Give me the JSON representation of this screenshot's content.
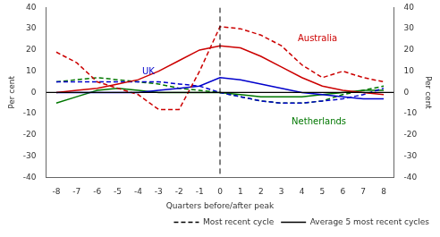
{
  "chart_data": {
    "type": "line",
    "x": [
      -8,
      -7,
      -6,
      -5,
      -4,
      -3,
      -2,
      -1,
      0,
      1,
      2,
      3,
      4,
      5,
      6,
      7,
      8
    ],
    "series": [
      {
        "name": "Australia",
        "color": "#cc0000",
        "line_style": "solid",
        "values": [
          0,
          1,
          2,
          4,
          6,
          10,
          15,
          20,
          22,
          21,
          17,
          12,
          7,
          3,
          1,
          0,
          -1
        ]
      },
      {
        "name": "Australia",
        "color": "#cc0000",
        "line_style": "dashed",
        "values": [
          19,
          14,
          5,
          2,
          -1,
          -8,
          -8,
          10,
          31,
          30,
          27,
          22,
          13,
          7,
          10,
          7,
          5
        ]
      },
      {
        "name": "UK",
        "color": "#0000cc",
        "line_style": "solid",
        "values": [
          0,
          0,
          0,
          0,
          0,
          1,
          2,
          3,
          7,
          6,
          4,
          2,
          0,
          -1,
          -2,
          -3,
          -3
        ]
      },
      {
        "name": "UK",
        "color": "#0000cc",
        "line_style": "dashed",
        "values": [
          5,
          5,
          5,
          5,
          5,
          5,
          4,
          3,
          0,
          -2,
          -4,
          -5,
          -5,
          -4,
          -3,
          -1,
          2
        ]
      },
      {
        "name": "Netherlands",
        "color": "#007700",
        "line_style": "solid",
        "values": [
          -5,
          -2,
          1,
          2,
          1,
          0,
          0,
          0,
          0,
          -1,
          -2,
          -2,
          -2,
          -1,
          0,
          1,
          1
        ]
      },
      {
        "name": "Netherlands",
        "color": "#007700",
        "line_style": "dashed",
        "values": [
          5,
          6,
          7,
          6,
          5,
          4,
          2,
          1,
          0,
          -2,
          -4,
          -5,
          -5,
          -4,
          -1,
          1,
          3
        ]
      }
    ],
    "xlim": [
      -8.5,
      8.5
    ],
    "xticks": [
      -8,
      -7,
      -6,
      -5,
      -4,
      -3,
      -2,
      -1,
      0,
      1,
      2,
      3,
      4,
      5,
      6,
      7,
      8
    ],
    "ylim": [
      -40,
      40
    ],
    "yticks": [
      -40,
      -30,
      -20,
      -10,
      0,
      10,
      20,
      30,
      40
    ],
    "y2lim": [
      -40,
      40
    ],
    "y2ticks": [
      -40,
      -30,
      -20,
      -10,
      0,
      10,
      20,
      30,
      40
    ],
    "xlabel": "Quarters before/after peak",
    "ylabel": "Per cent",
    "y2label": "Per cent",
    "grid": false,
    "legend": "lower right",
    "legend_entries": [
      {
        "label": "Most recent cycle",
        "line_style": "dashed",
        "color": "#000000"
      },
      {
        "label": "Average 5 most recent cycles",
        "line_style": "solid",
        "color": "#000000"
      }
    ],
    "reference_lines": [
      {
        "axis": "y",
        "value": 0,
        "line_style": "solid",
        "color": "#000000"
      },
      {
        "axis": "x",
        "value": 0,
        "line_style": "dashed",
        "color": "#000000"
      }
    ],
    "annotations": [
      {
        "text": "Australia",
        "x": 3.8,
        "y": 23,
        "color": "#cc0000"
      },
      {
        "text": "UK",
        "x": -3.8,
        "y": 7.5,
        "color": "#0000cc"
      },
      {
        "text": "Netherlands",
        "x": 3.5,
        "y": -16,
        "color": "#007700"
      }
    ]
  }
}
